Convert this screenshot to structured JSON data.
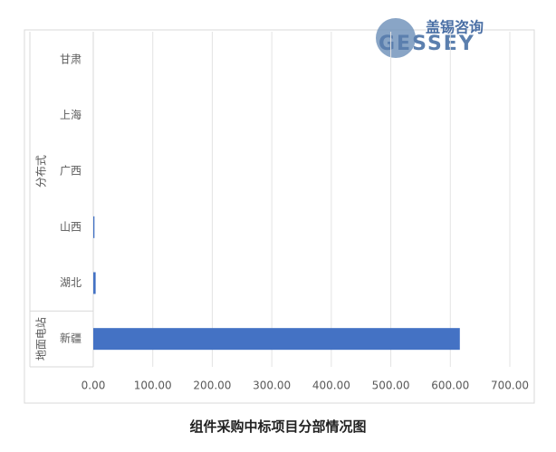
{
  "chart_data": {
    "type": "hbar",
    "title": "组件采购中标项目分部情况图",
    "logo": {
      "cn": "盖锡咨询",
      "en": "GESSEY"
    },
    "categories": [
      "甘肃",
      "上海",
      "广西",
      "山西",
      "湖北",
      "新疆"
    ],
    "category_groups": [
      "分布式",
      "分布式",
      "分布式",
      "分布式",
      "分布式",
      "地面电站"
    ],
    "values": [
      0,
      0,
      0,
      2,
      4,
      616
    ],
    "color": "#4472c4",
    "xlim": [
      0,
      700
    ],
    "xticks": [
      {
        "value": 0,
        "label": "0.00"
      },
      {
        "value": 100,
        "label": "100.00"
      },
      {
        "value": 200,
        "label": "200.00"
      },
      {
        "value": 300,
        "label": "300.00"
      },
      {
        "value": 400,
        "label": "400.00"
      },
      {
        "value": 500,
        "label": "500.00"
      },
      {
        "value": 600,
        "label": "600.00"
      },
      {
        "value": 700,
        "label": "700.00"
      }
    ],
    "grid": true
  }
}
